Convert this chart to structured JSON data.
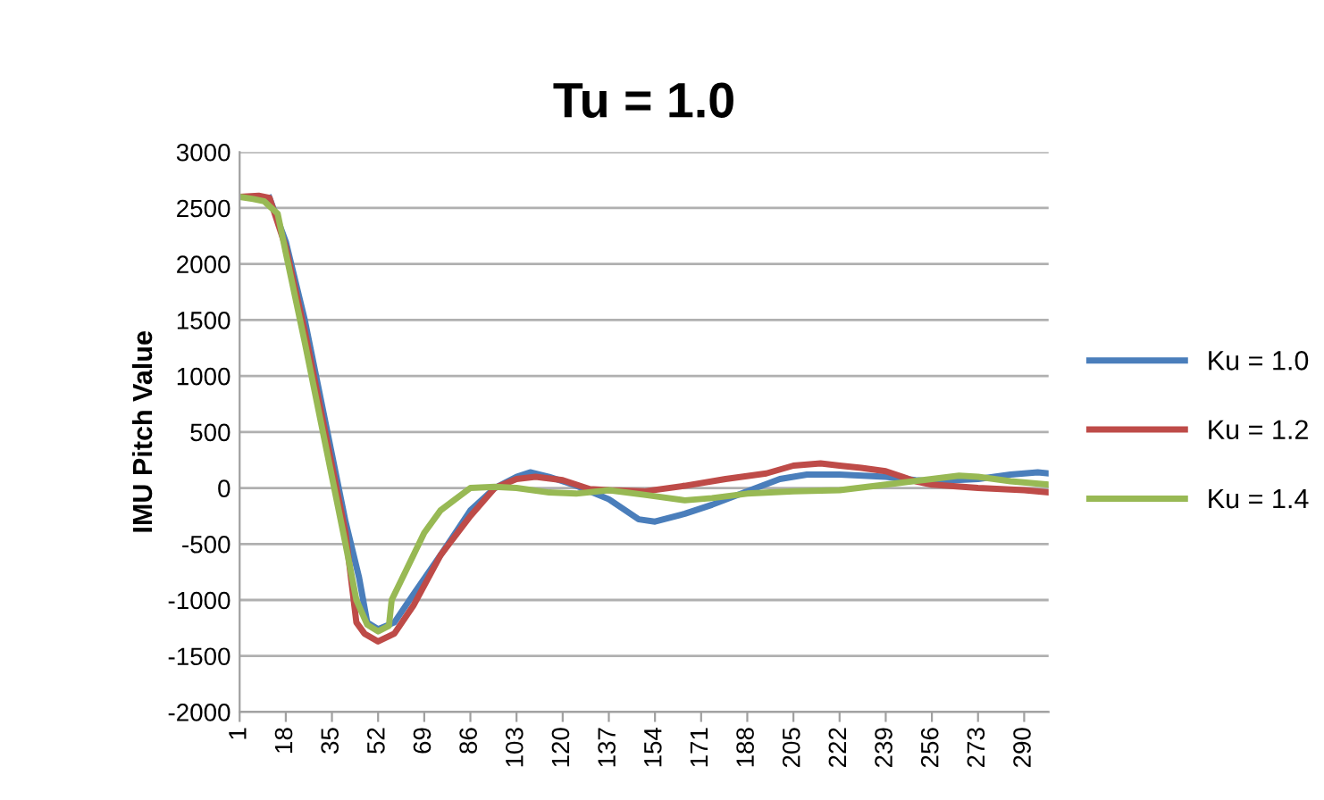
{
  "chart_data": {
    "type": "line",
    "title": "Tu = 1.0",
    "ylabel": "IMU Pitch Value",
    "xlim": [
      1,
      299
    ],
    "xticks": [
      1,
      18,
      35,
      52,
      69,
      86,
      103,
      120,
      137,
      154,
      171,
      188,
      205,
      222,
      239,
      256,
      273,
      290
    ],
    "ylim": [
      -2000,
      3000
    ],
    "yticks": [
      -2000,
      -1500,
      -1000,
      -500,
      0,
      500,
      1000,
      1500,
      2000,
      2500,
      3000
    ],
    "grid": "y",
    "legend": "right",
    "marker": "none",
    "line_style": "solid",
    "series": [
      {
        "name": "Ku = 1.0",
        "color": "#4a7ebb",
        "x": [
          12,
          18,
          25,
          30,
          35,
          40,
          45,
          48,
          52,
          58,
          65,
          75,
          86,
          95,
          103,
          108,
          115,
          125,
          137,
          148,
          154,
          165,
          175,
          188,
          200,
          210,
          222,
          239,
          250,
          256,
          273,
          285,
          295,
          299
        ],
        "values": [
          2590,
          2200,
          1500,
          900,
          300,
          -300,
          -800,
          -1200,
          -1260,
          -1200,
          -950,
          -600,
          -200,
          0,
          100,
          140,
          100,
          20,
          -100,
          -280,
          -300,
          -230,
          -150,
          -30,
          80,
          120,
          120,
          100,
          70,
          60,
          80,
          120,
          140,
          130
        ]
      },
      {
        "name": "Ku = 1.2",
        "color": "#be4b48",
        "x": [
          1,
          8,
          12,
          18,
          25,
          30,
          35,
          40,
          44,
          47,
          52,
          58,
          65,
          75,
          86,
          95,
          103,
          110,
          120,
          130,
          137,
          150,
          165,
          180,
          195,
          205,
          215,
          222,
          230,
          239,
          250,
          256,
          273,
          290,
          299
        ],
        "values": [
          2600,
          2610,
          2590,
          2150,
          1400,
          800,
          200,
          -400,
          -1200,
          -1300,
          -1370,
          -1300,
          -1050,
          -600,
          -250,
          0,
          80,
          100,
          70,
          -10,
          -20,
          -30,
          20,
          80,
          130,
          200,
          220,
          200,
          180,
          150,
          60,
          30,
          0,
          -20,
          -40
        ]
      },
      {
        "name": "Ku = 1.4",
        "color": "#98b954",
        "x": [
          1,
          6,
          10,
          15,
          18,
          25,
          30,
          35,
          40,
          44,
          48,
          52,
          56,
          57,
          62,
          69,
          75,
          86,
          95,
          103,
          115,
          125,
          137,
          150,
          165,
          175,
          188,
          205,
          222,
          239,
          256,
          266,
          273,
          285,
          299
        ],
        "values": [
          2600,
          2580,
          2560,
          2450,
          2100,
          1300,
          700,
          100,
          -500,
          -1000,
          -1220,
          -1280,
          -1230,
          -1000,
          -750,
          -400,
          -200,
          0,
          10,
          0,
          -40,
          -50,
          -20,
          -60,
          -110,
          -90,
          -50,
          -30,
          -20,
          30,
          80,
          110,
          100,
          60,
          30
        ]
      }
    ]
  }
}
